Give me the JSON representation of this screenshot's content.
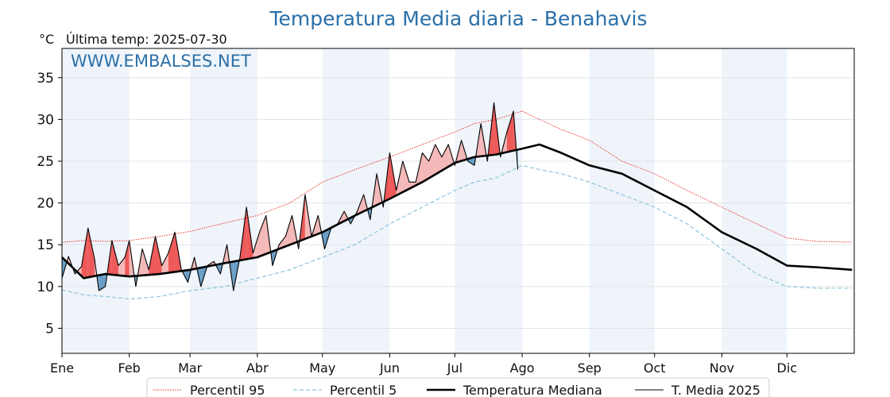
{
  "chart_data": {
    "type": "line",
    "title": "Temperatura Media diaria - Benahavis",
    "unit": "°C",
    "last_temp": "Última temp: 2025-07-30",
    "watermark": "WWW.EMBALSES.NET",
    "ylim": [
      2,
      38.5
    ],
    "yticks": [
      5,
      10,
      15,
      20,
      25,
      30,
      35
    ],
    "month_labels": [
      "Ene",
      "Feb",
      "Mar",
      "Abr",
      "May",
      "Jun",
      "Jul",
      "Ago",
      "Sep",
      "Oct",
      "Nov",
      "Dic"
    ],
    "month_start_days": [
      0,
      31,
      59,
      90,
      120,
      151,
      181,
      212,
      243,
      273,
      304,
      334
    ],
    "days_in_year": 365,
    "grid": true,
    "legend_position": "bottom",
    "colors": {
      "p95": "#e8221b",
      "p5": "#8cc3dc",
      "median": "#000000",
      "current": "#000000",
      "above_fill": "#f4b8b8",
      "above_strong": "#ee5a5a",
      "below_fill": "#6a9ec6",
      "band": "#eef4fa"
    },
    "series": [
      {
        "name": "Percentil 95",
        "style": "dotted",
        "x": [
          0,
          10,
          20,
          31,
          45,
          59,
          75,
          90,
          105,
          120,
          135,
          151,
          166,
          181,
          190,
          200,
          212,
          220,
          230,
          243,
          258,
          273,
          288,
          304,
          320,
          334,
          348,
          364
        ],
        "y": [
          15.3,
          15.5,
          15.4,
          15.5,
          16.0,
          16.6,
          17.6,
          18.5,
          20.0,
          22.5,
          24.0,
          25.5,
          27.0,
          28.5,
          29.5,
          30.0,
          31.0,
          30.0,
          28.8,
          27.5,
          25.0,
          23.5,
          21.5,
          19.5,
          17.5,
          15.8,
          15.4,
          15.3
        ]
      },
      {
        "name": "Percentil 5",
        "style": "dashed",
        "x": [
          0,
          10,
          20,
          31,
          45,
          59,
          75,
          90,
          105,
          120,
          135,
          151,
          166,
          181,
          190,
          200,
          212,
          220,
          230,
          243,
          258,
          273,
          288,
          304,
          320,
          334,
          348,
          364
        ],
        "y": [
          9.6,
          9.0,
          8.8,
          8.5,
          8.8,
          9.5,
          10.0,
          11.0,
          12.0,
          13.5,
          15.0,
          17.5,
          19.5,
          21.5,
          22.5,
          23.0,
          24.5,
          24.0,
          23.5,
          22.5,
          21.0,
          19.5,
          17.5,
          14.5,
          11.5,
          10.0,
          9.8,
          9.8
        ]
      },
      {
        "name": "Temperatura Mediana",
        "style": "solid-thick",
        "x": [
          0,
          10,
          20,
          31,
          45,
          59,
          75,
          90,
          105,
          120,
          135,
          151,
          166,
          181,
          190,
          200,
          212,
          220,
          230,
          243,
          258,
          273,
          288,
          304,
          320,
          334,
          348,
          364
        ],
        "y": [
          13.5,
          11.0,
          11.5,
          11.2,
          11.5,
          12.0,
          12.8,
          13.5,
          15.0,
          16.5,
          18.5,
          20.5,
          22.5,
          24.8,
          25.5,
          25.8,
          26.5,
          27.0,
          26.0,
          24.5,
          23.5,
          21.5,
          19.5,
          16.5,
          14.5,
          12.5,
          12.3,
          12.0
        ]
      },
      {
        "name": "T. Media 2025",
        "style": "solid-thin",
        "x": [
          0,
          3,
          6,
          9,
          12,
          15,
          17,
          20,
          23,
          26,
          29,
          31,
          34,
          37,
          40,
          43,
          46,
          49,
          52,
          55,
          58,
          61,
          64,
          67,
          70,
          73,
          76,
          79,
          82,
          85,
          88,
          91,
          94,
          97,
          100,
          103,
          106,
          109,
          112,
          115,
          118,
          121,
          124,
          127,
          130,
          133,
          136,
          139,
          142,
          145,
          148,
          151,
          154,
          157,
          160,
          163,
          166,
          169,
          172,
          175,
          178,
          181,
          184,
          187,
          190,
          193,
          196,
          199,
          202,
          205,
          208,
          210
        ],
        "y": [
          11.0,
          13.6,
          11.5,
          12.4,
          17.0,
          13.3,
          9.5,
          10.0,
          15.5,
          12.5,
          13.5,
          15.5,
          10.0,
          14.5,
          12.0,
          16.0,
          12.5,
          14.0,
          16.5,
          12.0,
          10.5,
          13.5,
          10.0,
          12.5,
          13.0,
          11.5,
          15.0,
          9.5,
          13.5,
          19.5,
          14.0,
          16.5,
          18.5,
          12.5,
          15.0,
          16.0,
          18.5,
          14.5,
          21.0,
          16.0,
          18.5,
          14.5,
          17.0,
          17.5,
          19.0,
          17.5,
          19.0,
          21.0,
          18.0,
          23.5,
          19.5,
          26.0,
          21.5,
          25.0,
          22.5,
          22.5,
          26.0,
          25.0,
          27.0,
          25.5,
          27.0,
          24.5,
          27.5,
          25.0,
          24.5,
          29.5,
          25.0,
          32.0,
          25.5,
          28.5,
          31.0,
          24.0
        ]
      }
    ]
  }
}
